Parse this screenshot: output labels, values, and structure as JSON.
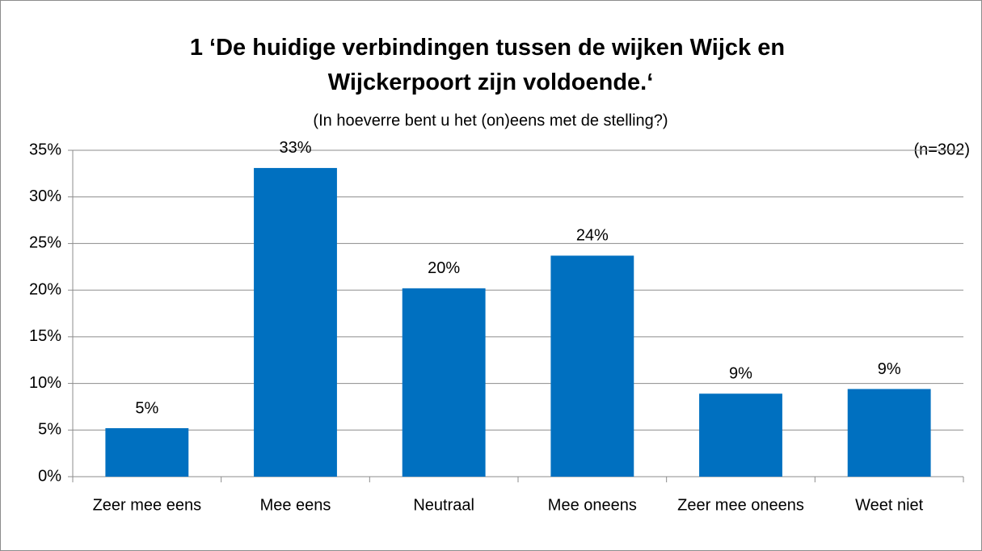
{
  "chart_data": {
    "type": "bar",
    "title": "1 ‘De huidige verbindingen tussen de wijken Wijck en Wijckerpoort zijn voldoende.‘",
    "subtitle": "(In hoeverre bent u het (on)eens met de stelling?)",
    "annotation": "(n=302)",
    "categories": [
      "Zeer mee eens",
      "Mee eens",
      "Neutraal",
      "Mee oneens",
      "Zeer mee oneens",
      "Weet niet"
    ],
    "values": [
      5.2,
      33.1,
      20.2,
      23.7,
      8.9,
      9.4
    ],
    "value_labels": [
      "5%",
      "33%",
      "20%",
      "24%",
      "9%",
      "9%"
    ],
    "color": "#0070c0",
    "ylim": [
      0,
      35
    ],
    "yticks": [
      {
        "value": 0,
        "label": "0%"
      },
      {
        "value": 5,
        "label": "5%"
      },
      {
        "value": 10,
        "label": "10%"
      },
      {
        "value": 15,
        "label": "15%"
      },
      {
        "value": 20,
        "label": "20%"
      },
      {
        "value": 25,
        "label": "25%"
      },
      {
        "value": 30,
        "label": "30%"
      },
      {
        "value": 35,
        "label": "35%"
      }
    ],
    "grid": true
  }
}
